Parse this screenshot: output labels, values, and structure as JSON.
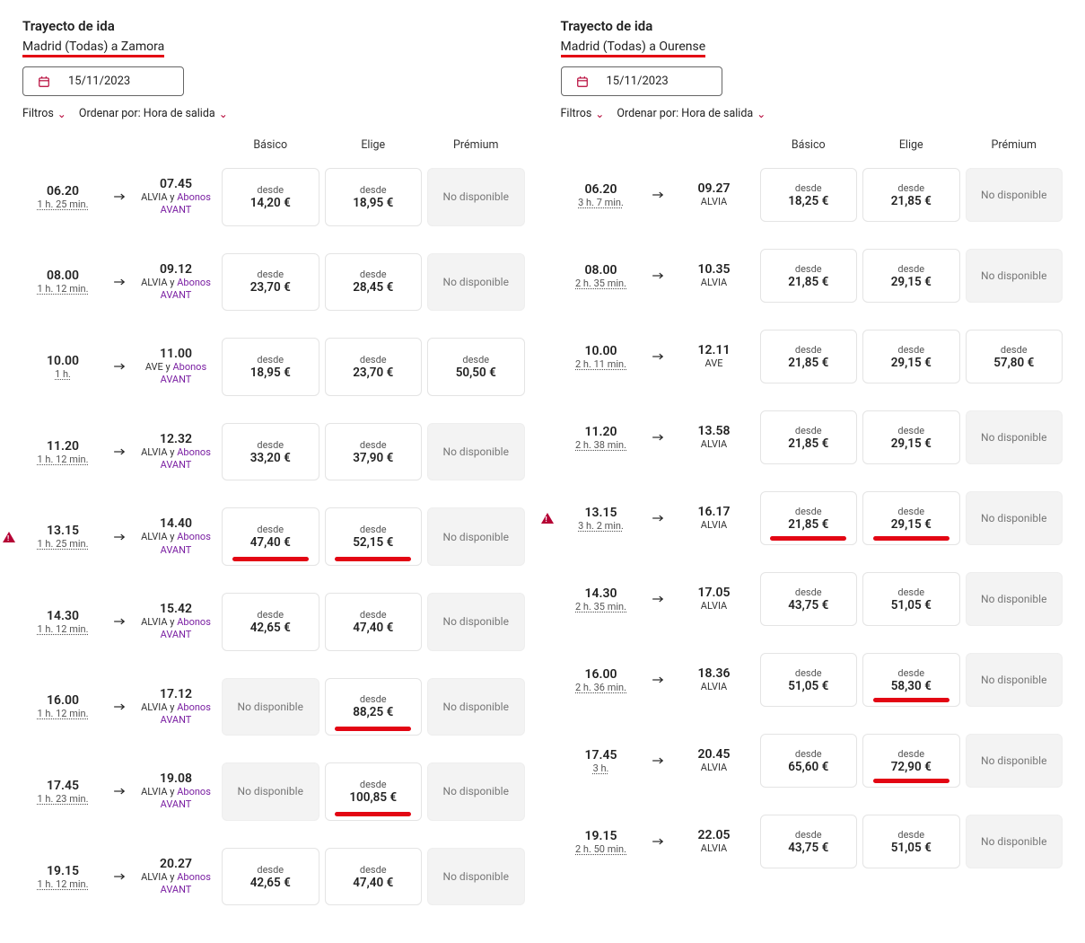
{
  "labels": {
    "filters": "Filtros",
    "sort_prefix": "Ordenar por: ",
    "desde": "desde",
    "no_disp": "No disponible"
  },
  "fare_classes": [
    "Básico",
    "Elige",
    "Prémium"
  ],
  "colors": {
    "accent": "#e30613",
    "purple": "#7a1fa2",
    "unavail_bg": "#f3f3f3"
  },
  "left": {
    "title": "Trayecto de ida",
    "route": "Madrid (Todas) a Zamora",
    "date": "15/11/2023",
    "sort_value": "Hora de salida",
    "rows": [
      {
        "dep": "06.20",
        "dur": "1 h. 25 min.",
        "arr": "07.45",
        "train_html": "ALVIA y <span class=\"avant\">Abonos AVANT</span>",
        "fares": [
          {
            "price": "14,20 €"
          },
          {
            "price": "18,95 €"
          },
          "NA"
        ]
      },
      {
        "dep": "08.00",
        "dur": "1 h. 12 min.",
        "arr": "09.12",
        "train_html": "ALVIA y <span class=\"avant\">Abonos AVANT</span>",
        "fares": [
          {
            "price": "23,70 €"
          },
          {
            "price": "28,45 €"
          },
          "NA"
        ]
      },
      {
        "dep": "10.00",
        "dur": "1 h.",
        "arr": "11.00",
        "train_html": "AVE y <span class=\"avant\">Abonos AVANT</span>",
        "fares": [
          {
            "price": "18,95 €"
          },
          {
            "price": "23,70 €"
          },
          {
            "price": "50,50 €"
          }
        ]
      },
      {
        "dep": "11.20",
        "dur": "1 h. 12 min.",
        "arr": "12.32",
        "train_html": "ALVIA y <span class=\"avant\">Abonos AVANT</span>",
        "fares": [
          {
            "price": "33,20 €"
          },
          {
            "price": "37,90 €"
          },
          "NA"
        ]
      },
      {
        "warn": true,
        "dep": "13.15",
        "dur": "1 h. 25 min.",
        "arr": "14.40",
        "train_html": "ALVIA y <span class=\"avant\">Abonos AVANT</span>",
        "fares": [
          {
            "price": "47,40 €",
            "hl": true
          },
          {
            "price": "52,15 €",
            "hl": true
          },
          "NA"
        ]
      },
      {
        "dep": "14.30",
        "dur": "1 h. 12 min.",
        "arr": "15.42",
        "train_html": "ALVIA y <span class=\"avant\">Abonos AVANT</span>",
        "fares": [
          {
            "price": "42,65 €"
          },
          {
            "price": "47,40 €"
          },
          "NA"
        ]
      },
      {
        "dep": "16.00",
        "dur": "1 h. 12 min.",
        "arr": "17.12",
        "train_html": "ALVIA y <span class=\"avant\">Abonos AVANT</span>",
        "fares": [
          "NA",
          {
            "price": "88,25 €",
            "hl": true
          },
          "NA"
        ]
      },
      {
        "dep": "17.45",
        "dur": "1 h. 23 min.",
        "arr": "19.08",
        "train_html": "ALVIA y <span class=\"avant\">Abonos AVANT</span>",
        "fares": [
          "NA",
          {
            "price": "100,85 €",
            "hl": true
          },
          "NA"
        ]
      },
      {
        "dep": "19.15",
        "dur": "1 h. 12 min.",
        "arr": "20.27",
        "train_html": "ALVIA y <span class=\"avant\">Abonos AVANT</span>",
        "fares": [
          {
            "price": "42,65 €"
          },
          {
            "price": "47,40 €"
          },
          "NA"
        ]
      }
    ]
  },
  "right": {
    "title": "Trayecto de ida",
    "route": "Madrid (Todas) a Ourense",
    "date": "15/11/2023",
    "sort_value": "Hora de salida",
    "rows": [
      {
        "dep": "06.20",
        "dur": "3 h. 7 min.",
        "arr": "09.27",
        "train_html": "ALVIA",
        "fares": [
          {
            "price": "18,25 €"
          },
          {
            "price": "21,85 €"
          },
          "NA"
        ]
      },
      {
        "dep": "08.00",
        "dur": "2 h. 35 min.",
        "arr": "10.35",
        "train_html": "ALVIA",
        "fares": [
          {
            "price": "21,85 €"
          },
          {
            "price": "29,15 €"
          },
          "NA"
        ]
      },
      {
        "dep": "10.00",
        "dur": "2 h. 11 min.",
        "arr": "12.11",
        "train_html": "AVE",
        "fares": [
          {
            "price": "21,85 €"
          },
          {
            "price": "29,15 €"
          },
          {
            "price": "57,80 €"
          }
        ]
      },
      {
        "dep": "11.20",
        "dur": "2 h. 38 min.",
        "arr": "13.58",
        "train_html": "ALVIA",
        "fares": [
          {
            "price": "21,85 €"
          },
          {
            "price": "29,15 €"
          },
          "NA"
        ]
      },
      {
        "warn": true,
        "dep": "13.15",
        "dur": "3 h. 2 min.",
        "arr": "16.17",
        "train_html": "ALVIA",
        "fares": [
          {
            "price": "21,85 €",
            "hl": true
          },
          {
            "price": "29,15 €",
            "hl": true
          },
          "NA"
        ]
      },
      {
        "dep": "14.30",
        "dur": "2 h. 35 min.",
        "arr": "17.05",
        "train_html": "ALVIA",
        "fares": [
          {
            "price": "43,75 €"
          },
          {
            "price": "51,05 €"
          },
          "NA"
        ]
      },
      {
        "dep": "16.00",
        "dur": "2 h. 36 min.",
        "arr": "18.36",
        "train_html": "ALVIA",
        "fares": [
          {
            "price": "51,05 €"
          },
          {
            "price": "58,30 €",
            "hl": true
          },
          "NA"
        ]
      },
      {
        "dep": "17.45",
        "dur": "3 h.",
        "arr": "20.45",
        "train_html": "ALVIA",
        "fares": [
          {
            "price": "65,60 €"
          },
          {
            "price": "72,90 €",
            "hl": true
          },
          "NA"
        ]
      },
      {
        "dep": "19.15",
        "dur": "2 h. 50 min.",
        "arr": "22.05",
        "train_html": "ALVIA",
        "fares": [
          {
            "price": "43,75 €"
          },
          {
            "price": "51,05 €"
          },
          "NA"
        ]
      }
    ]
  }
}
